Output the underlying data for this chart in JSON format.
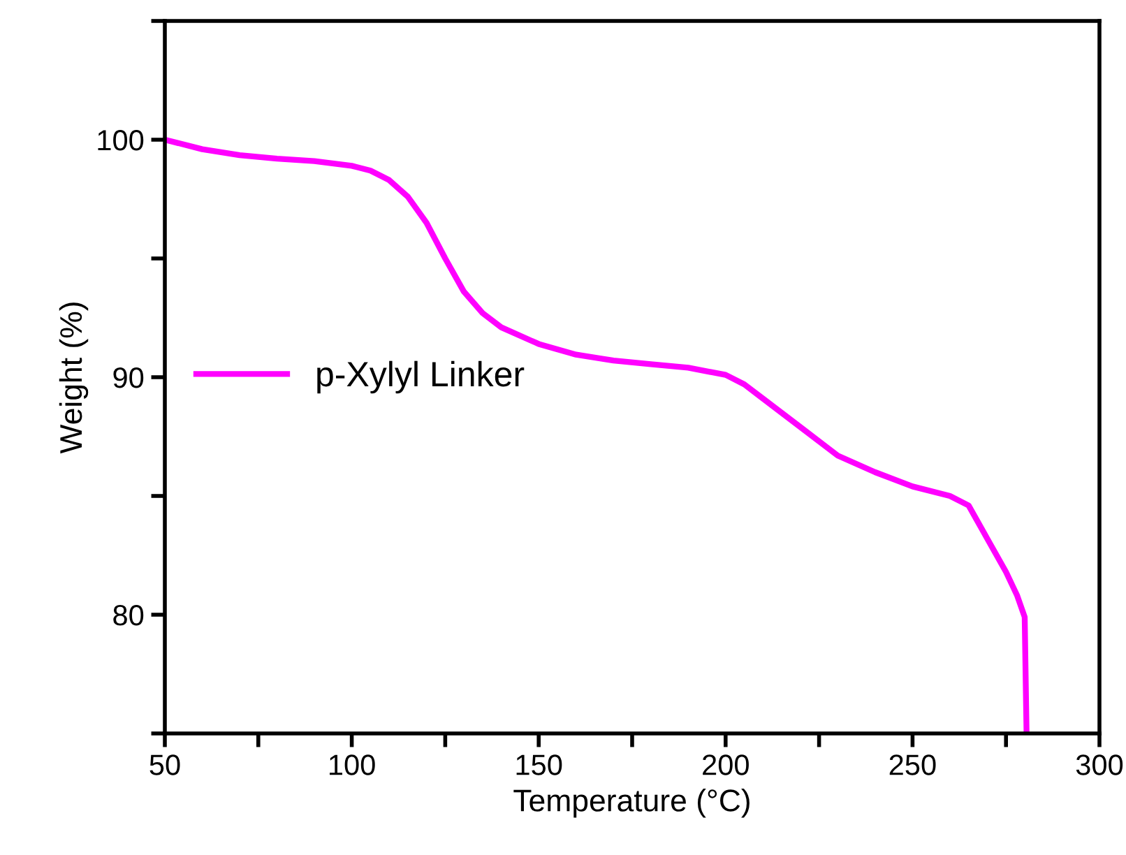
{
  "chart_data": {
    "type": "line",
    "xlabel": "Temperature (°C)",
    "ylabel": "Weight (%)",
    "x": [
      50,
      60,
      70,
      80,
      90,
      100,
      105,
      110,
      115,
      120,
      125,
      130,
      135,
      140,
      150,
      160,
      170,
      180,
      190,
      200,
      205,
      210,
      220,
      230,
      240,
      250,
      260,
      265,
      270,
      275,
      278,
      280,
      280.5
    ],
    "series": [
      {
        "name": "p-Xylyl Linker",
        "color": "#ff00ff",
        "values": [
          100,
          99.6,
          99.35,
          99.2,
          99.1,
          98.9,
          98.7,
          98.3,
          97.6,
          96.5,
          95.0,
          93.6,
          92.7,
          92.1,
          91.4,
          90.95,
          90.7,
          90.55,
          90.4,
          90.1,
          89.7,
          89.1,
          87.9,
          86.7,
          86.0,
          85.4,
          85.0,
          84.6,
          83.2,
          81.8,
          80.8,
          79.9,
          75
        ]
      }
    ],
    "xlim": [
      50,
      300
    ],
    "ylim": [
      75,
      105
    ],
    "xticks": [
      50,
      {
        "value": 75,
        "label": null
      },
      100,
      {
        "value": 125,
        "label": null
      },
      150,
      {
        "value": 175,
        "label": null
      },
      200,
      {
        "value": 225,
        "label": null
      },
      250,
      {
        "value": 275,
        "label": null
      },
      300
    ],
    "yticks": [
      {
        "value": 75,
        "label": null
      },
      80,
      {
        "value": 85,
        "label": null
      },
      90,
      {
        "value": 95,
        "label": null
      },
      100,
      {
        "value": 105,
        "label": null
      }
    ],
    "grid": false,
    "legend": "left",
    "marker": "none",
    "line_style": "solid"
  }
}
